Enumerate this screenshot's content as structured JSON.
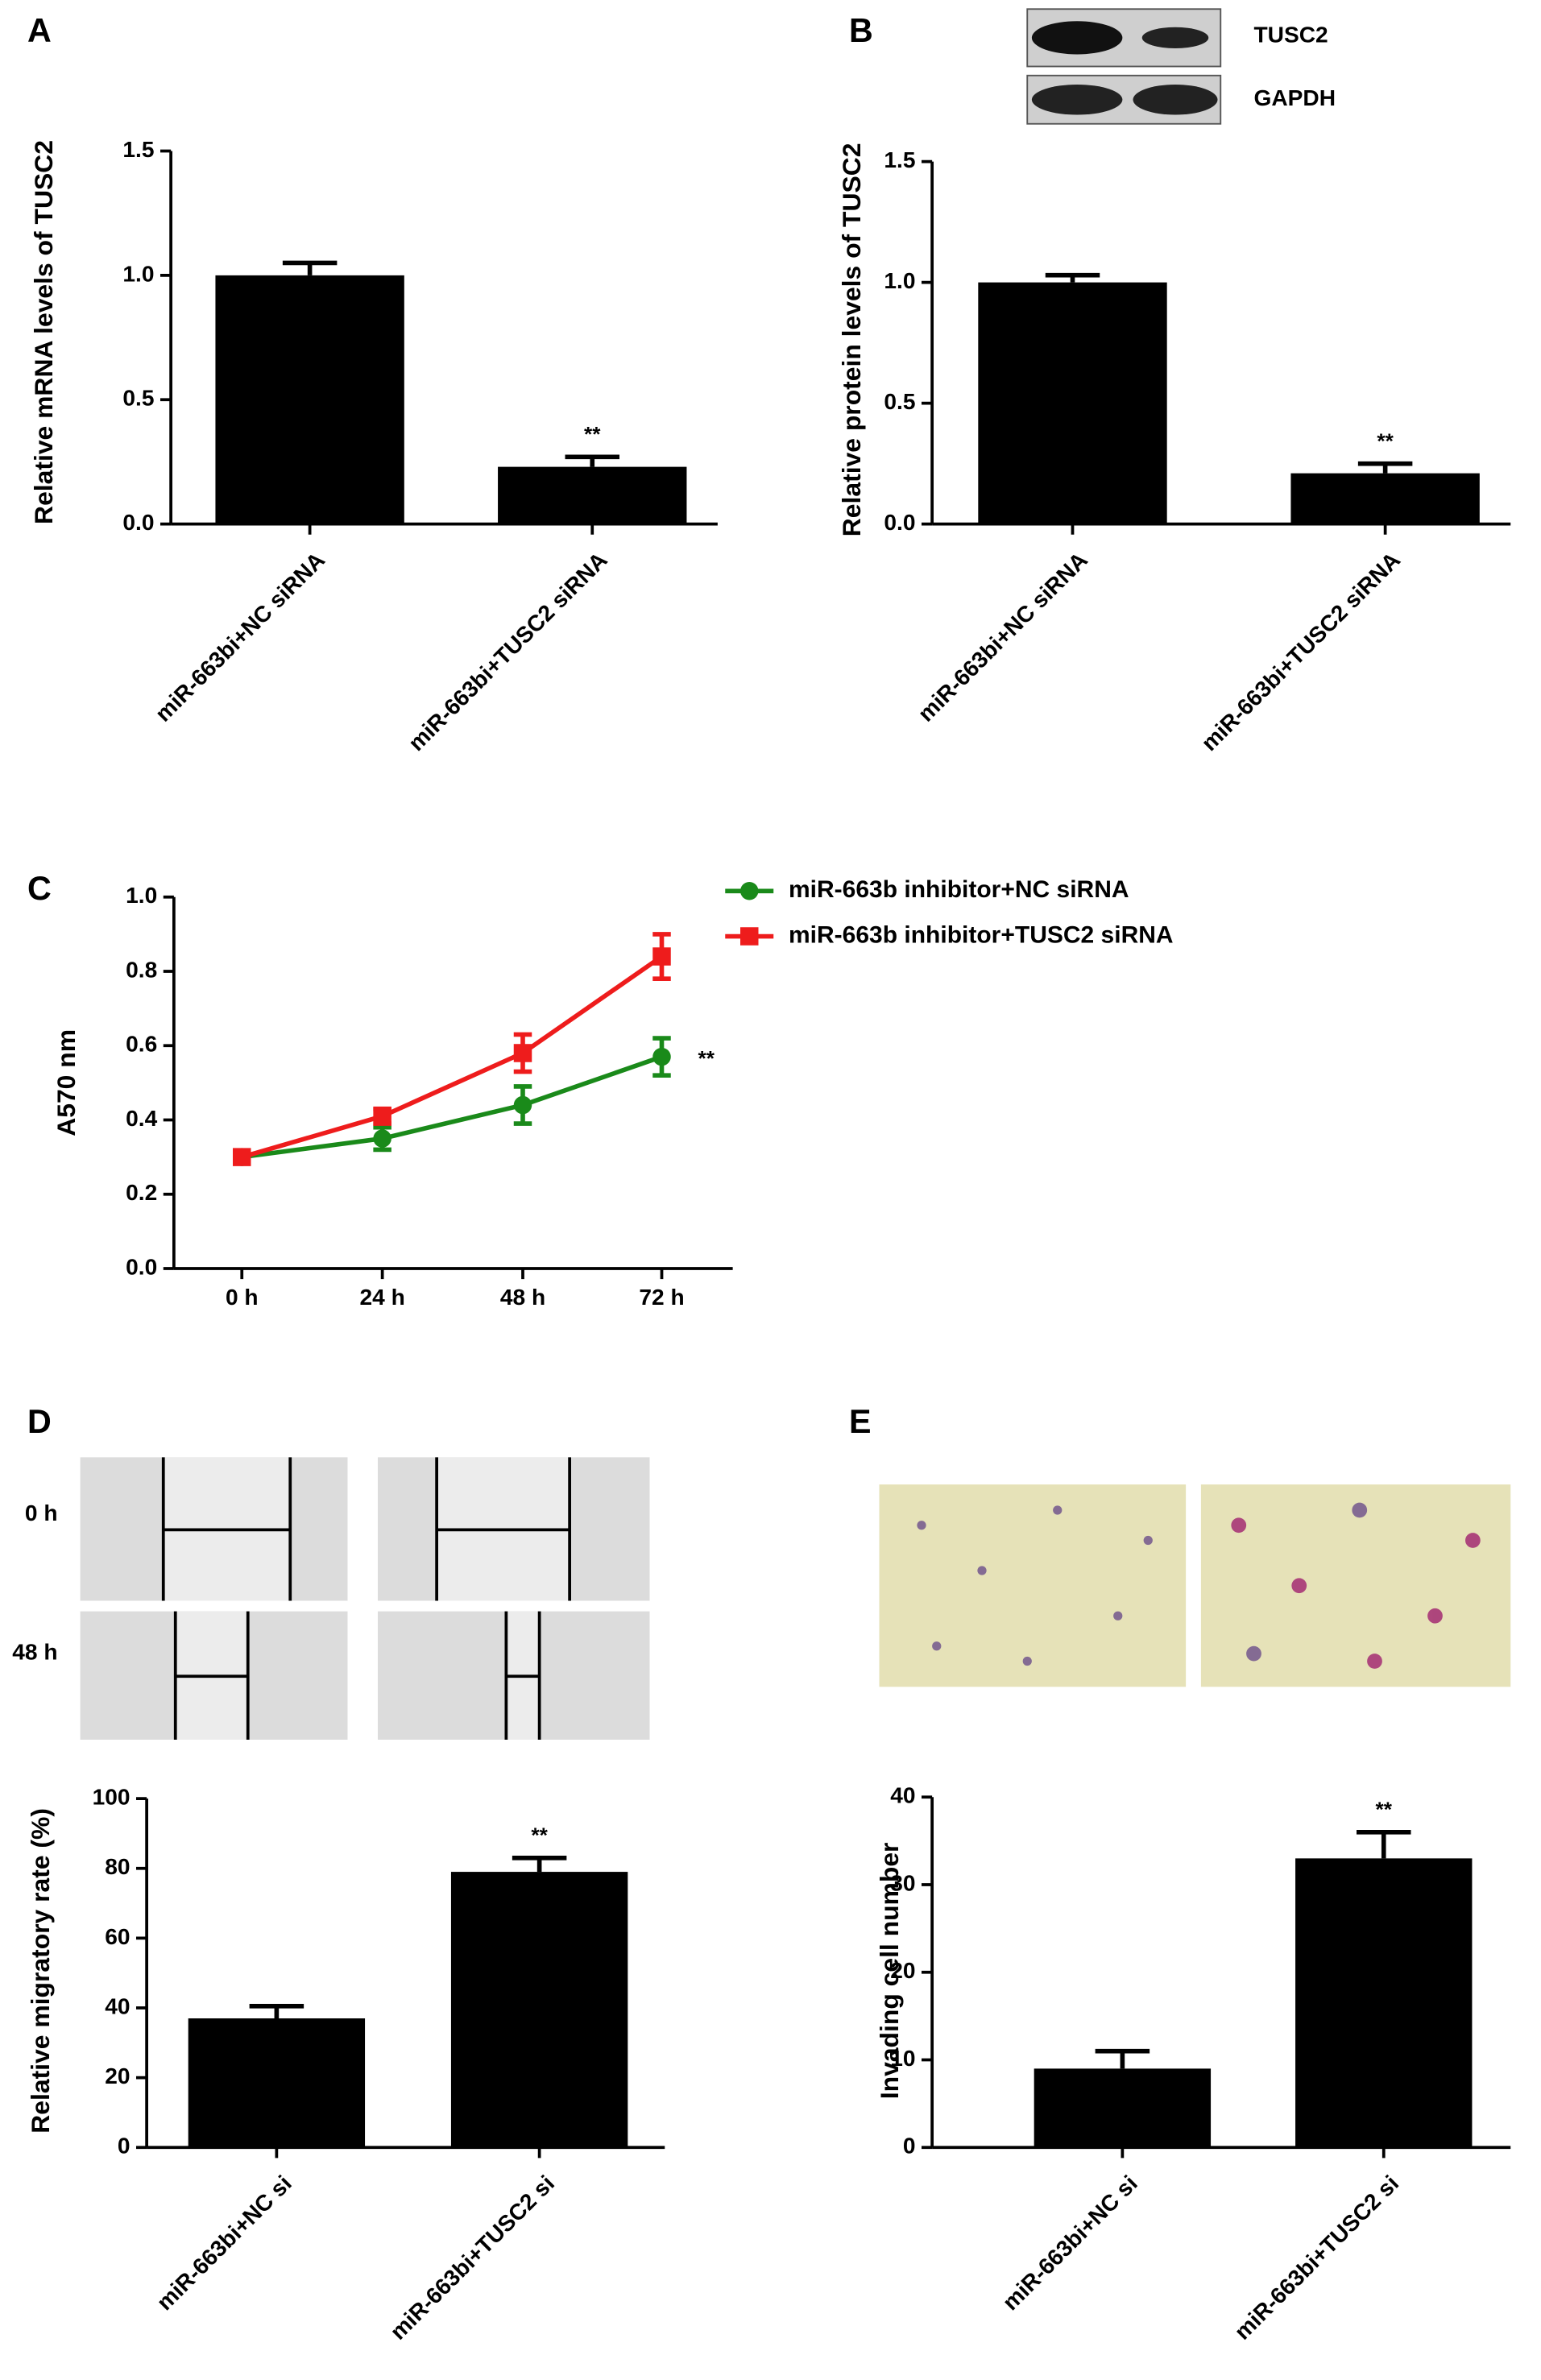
{
  "chart_data": [
    {
      "type": "bar",
      "panel": "A",
      "ylabel": "Relative mRNA levels of TUSC2",
      "categories": [
        "miR-663bi+NC siRNA",
        "miR-663bi+TUSC2 siRNA"
      ],
      "values": [
        1.0,
        0.23
      ],
      "errors": [
        0.05,
        0.04
      ],
      "color": "#000000",
      "annotation": "**",
      "ylim": [
        0,
        1.5
      ],
      "yticks": [
        {
          "value": 0,
          "label": "0.0"
        },
        {
          "value": 0.5,
          "label": "0.5"
        },
        {
          "value": 1.0,
          "label": "1.0"
        },
        {
          "value": 1.5,
          "label": "1.5"
        }
      ]
    },
    {
      "type": "bar",
      "panel": "B",
      "ylabel": "Relative protein levels of TUSC2",
      "categories": [
        "miR-663bi+NC siRNA",
        "miR-663bi+TUSC2 siRNA"
      ],
      "values": [
        1.0,
        0.21
      ],
      "errors": [
        0.03,
        0.04
      ],
      "color": "#000000",
      "annotation": "**",
      "blot_labels": [
        "TUSC2",
        "GAPDH"
      ],
      "ylim": [
        0,
        1.5
      ],
      "yticks": [
        {
          "value": 0,
          "label": "0.0"
        },
        {
          "value": 0.5,
          "label": "0.5"
        },
        {
          "value": 1.0,
          "label": "1.0"
        },
        {
          "value": 1.5,
          "label": "1.5"
        }
      ]
    },
    {
      "type": "line",
      "panel": "C",
      "ylabel": "A570 nm",
      "annotation": "**",
      "categories": [
        "0 h",
        "24 h",
        "48 h",
        "72 h"
      ],
      "series": [
        {
          "name": "miR-663b inhibitor+NC siRNA",
          "color": "#1a8a1a",
          "marker": "circle",
          "values": [
            0.3,
            0.35,
            0.44,
            0.57
          ],
          "errors": [
            0.01,
            0.03,
            0.05,
            0.05
          ]
        },
        {
          "name": "miR-663b inhibitor+TUSC2 siRNA",
          "color": "#ee1c1c",
          "marker": "square",
          "values": [
            0.3,
            0.41,
            0.58,
            0.84
          ],
          "errors": [
            0.01,
            0.02,
            0.05,
            0.06
          ]
        }
      ],
      "ylim": [
        0,
        1.0
      ],
      "yticks": [
        {
          "value": 0,
          "label": "0.0"
        },
        {
          "value": 0.2,
          "label": "0.2"
        },
        {
          "value": 0.4,
          "label": "0.4"
        },
        {
          "value": 0.6,
          "label": "0.6"
        },
        {
          "value": 0.8,
          "label": "0.8"
        },
        {
          "value": 1.0,
          "label": "1.0"
        }
      ]
    },
    {
      "type": "bar",
      "panel": "D",
      "ylabel": "Relative migratory rate (%)",
      "row_labels": [
        "0 h",
        "48 h"
      ],
      "categories": [
        "miR-663bi+NC si",
        "miR-663bi+TUSC2 si"
      ],
      "values": [
        37,
        79
      ],
      "errors": [
        3.5,
        4
      ],
      "color": "#000000",
      "annotation": "**",
      "ylim": [
        0,
        100
      ],
      "yticks": [
        0,
        20,
        40,
        60,
        80,
        100
      ]
    },
    {
      "type": "bar",
      "panel": "E",
      "ylabel": "Invading cell number",
      "categories": [
        "miR-663bi+NC si",
        "miR-663bi+TUSC2 si"
      ],
      "values": [
        9,
        33
      ],
      "errors": [
        2,
        3
      ],
      "color": "#000000",
      "annotation": "**",
      "ylim": [
        0,
        40
      ],
      "yticks": [
        0,
        10,
        20,
        30,
        40
      ]
    }
  ]
}
